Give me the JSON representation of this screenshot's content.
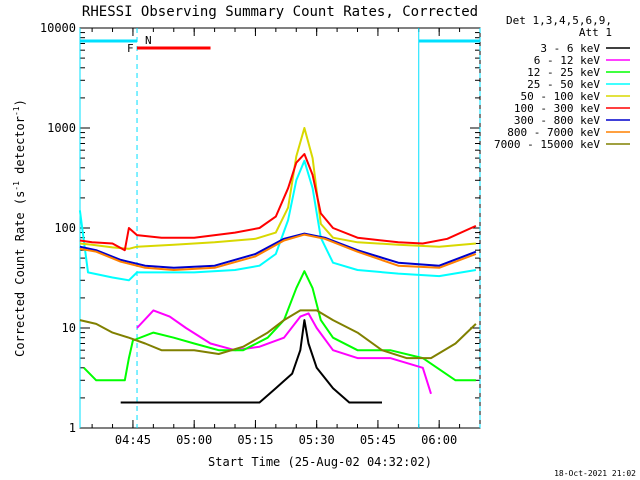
{
  "chart_data": {
    "type": "line",
    "title": "RHESSI Observing Summary Count Rates, Corrected",
    "xlabel": "Start Time (25-Aug-02 04:32:02)",
    "ylabel_main": "Corrected Count Rate (s",
    "ylabel_sup1": "-1",
    "ylabel_mid": " detector",
    "ylabel_sup2": "-1",
    "ylabel_end": ")",
    "y_scale": "log",
    "ylim": [
      1,
      10000
    ],
    "xlim": [
      "04:32:02",
      "06:10:00"
    ],
    "x_ticks": [
      "04:45",
      "05:00",
      "05:15",
      "05:30",
      "05:45",
      "06:00"
    ],
    "y_ticks": [
      "1",
      "10",
      "100",
      "1000",
      "10000"
    ],
    "legend_header": [
      "Det 1,3,4,5,6,9,",
      "Att 1"
    ],
    "legend_placement": "top-right outside",
    "footer_date": "18-Oct-2021 21:02",
    "flag_labels": {
      "F": "F",
      "N": "N"
    },
    "flags": {
      "night": [
        [
          "04:32:02",
          "04:46:00"
        ],
        [
          "05:55:00",
          "06:10:00"
        ]
      ],
      "flare": [
        [
          "04:46:00",
          "05:04:00"
        ]
      ]
    },
    "series": [
      {
        "name": "3 - 6 keV",
        "color": "#000000",
        "t": [
          "04:42",
          "04:52",
          "05:02",
          "05:10",
          "05:16",
          "05:20",
          "05:24",
          "05:26",
          "05:27",
          "05:28",
          "05:30",
          "05:34",
          "05:38",
          "05:42",
          "05:46"
        ],
        "y": [
          1.8,
          1.8,
          1.8,
          1.8,
          1.8,
          2.5,
          3.5,
          6,
          12,
          7,
          4,
          2.5,
          1.8,
          1.8,
          1.8
        ]
      },
      {
        "name": "6 - 12 keV",
        "color": "#ff00ff",
        "t": [
          "04:46",
          "04:50",
          "04:54",
          "04:58",
          "05:04",
          "05:10",
          "05:16",
          "05:22",
          "05:26",
          "05:28",
          "05:30",
          "05:34",
          "05:40",
          "05:48",
          "05:56",
          "05:58"
        ],
        "y": [
          10,
          15,
          13,
          10,
          7,
          6,
          6.5,
          8,
          13,
          14,
          10,
          6,
          5,
          5,
          4,
          2.2
        ]
      },
      {
        "name": "12 - 25 keV",
        "color": "#00ff00",
        "t": [
          "04:33",
          "04:36",
          "04:40",
          "04:43",
          "04:44",
          "04:45",
          "04:50",
          "04:55",
          "05:00",
          "05:06",
          "05:12",
          "05:18",
          "05:22",
          "05:25",
          "05:27",
          "05:29",
          "05:31",
          "05:34",
          "05:40",
          "05:48",
          "05:56",
          "06:04",
          "06:09"
        ],
        "y": [
          4,
          3,
          3,
          3,
          5,
          7.5,
          9,
          8,
          7,
          6,
          6,
          8,
          12,
          25,
          37,
          25,
          12,
          8,
          6,
          6,
          5,
          3,
          3
        ]
      },
      {
        "name": "25 - 50 keV",
        "color": "#00ffff",
        "t": [
          "04:32",
          "04:34",
          "04:40",
          "04:44",
          "04:46",
          "05:00",
          "05:10",
          "05:16",
          "05:20",
          "05:23",
          "05:25",
          "05:27",
          "05:29",
          "05:31",
          "05:34",
          "05:40",
          "05:50",
          "06:00",
          "06:09"
        ],
        "y": [
          150,
          36,
          32,
          30,
          36,
          36,
          38,
          42,
          55,
          120,
          300,
          470,
          250,
          80,
          45,
          38,
          35,
          33,
          38
        ]
      },
      {
        "name": "50 - 100 keV",
        "color": "#d8d800",
        "t": [
          "04:32",
          "04:35",
          "04:40",
          "04:44",
          "04:46",
          "04:55",
          "05:05",
          "05:15",
          "05:20",
          "05:23",
          "05:25",
          "05:27",
          "05:29",
          "05:31",
          "05:34",
          "05:40",
          "05:50",
          "06:00",
          "06:09"
        ],
        "y": [
          70,
          68,
          64,
          62,
          65,
          68,
          72,
          78,
          90,
          160,
          520,
          1000,
          500,
          110,
          80,
          72,
          68,
          65,
          70
        ]
      },
      {
        "name": "100 - 300 keV",
        "color": "#ff0000",
        "t": [
          "04:32",
          "04:35",
          "04:40",
          "04:43",
          "04:44",
          "04:46",
          "04:52",
          "05:00",
          "05:10",
          "05:16",
          "05:20",
          "05:23",
          "05:25",
          "05:27",
          "05:29",
          "05:31",
          "05:34",
          "05:40",
          "05:50",
          "05:56",
          "06:02",
          "06:09"
        ],
        "y": [
          75,
          72,
          70,
          60,
          100,
          85,
          80,
          80,
          90,
          100,
          130,
          250,
          450,
          550,
          340,
          140,
          100,
          80,
          72,
          70,
          78,
          105
        ]
      },
      {
        "name": "300 - 800 keV",
        "color": "#0000cc",
        "t": [
          "04:32",
          "04:36",
          "04:42",
          "04:48",
          "04:55",
          "05:05",
          "05:15",
          "05:22",
          "05:27",
          "05:32",
          "05:40",
          "05:50",
          "06:00",
          "06:09"
        ],
        "y": [
          65,
          60,
          48,
          42,
          40,
          42,
          55,
          78,
          88,
          80,
          60,
          45,
          42,
          58
        ]
      },
      {
        "name": "800 - 7000 keV",
        "color": "#ff8000",
        "t": [
          "04:32",
          "04:36",
          "04:42",
          "04:48",
          "04:55",
          "05:05",
          "05:15",
          "05:22",
          "05:27",
          "05:32",
          "05:40",
          "05:50",
          "06:00",
          "06:09"
        ],
        "y": [
          62,
          58,
          46,
          40,
          38,
          40,
          52,
          75,
          86,
          78,
          58,
          42,
          40,
          55
        ]
      },
      {
        "name": "7000 - 15000 keV",
        "color": "#808000",
        "t": [
          "04:32",
          "04:36",
          "04:40",
          "04:44",
          "04:48",
          "04:52",
          "05:00",
          "05:06",
          "05:12",
          "05:18",
          "05:22",
          "05:26",
          "05:30",
          "05:34",
          "05:40",
          "05:46",
          "05:52",
          "05:58",
          "06:04",
          "06:09"
        ],
        "y": [
          12,
          11,
          9,
          8,
          7,
          6,
          6,
          5.5,
          6.5,
          9,
          12,
          15,
          15,
          12,
          9,
          6,
          5,
          5,
          7,
          11
        ]
      }
    ]
  }
}
